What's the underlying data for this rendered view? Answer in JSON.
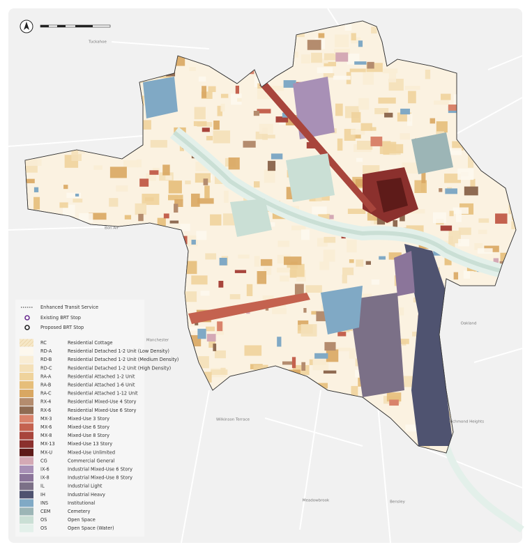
{
  "legend": {
    "transit": [
      {
        "label": "Enhanced Transit Service"
      },
      {
        "label": "Existing BRT Stop"
      },
      {
        "label": "Proposed BRT Stop"
      }
    ],
    "items": [
      {
        "code": "RC",
        "label": "Residential Cottage",
        "color": "#f6e7c6",
        "hatch": true
      },
      {
        "code": "RD-A",
        "label": "Residential Detached 1-2 Unit (Low Density)",
        "color": "#fdf8ee"
      },
      {
        "code": "RD-B",
        "label": "Residential Detached 1-2 Unit (Medium Density)",
        "color": "#f9edd5"
      },
      {
        "code": "RD-C",
        "label": "Residential Detached 1-2 Unit (High Density)",
        "color": "#f4e0b8"
      },
      {
        "code": "RA-A",
        "label": "Residential Attached 1-2 Unit",
        "color": "#efd39c"
      },
      {
        "code": "RA-B",
        "label": "Residential Attached 1-6 Unit",
        "color": "#e6be7a"
      },
      {
        "code": "RA-C",
        "label": "Residential Attached 1-12 Unit",
        "color": "#d9a762"
      },
      {
        "code": "RX-4",
        "label": "Residential Mixed-Use 4 Story",
        "color": "#b48c6e"
      },
      {
        "code": "RX-6",
        "label": "Residential Mixed-Use 6 Story",
        "color": "#8f6b52"
      },
      {
        "code": "MX-3",
        "label": "Mixed-Use 3 Story",
        "color": "#d9836b"
      },
      {
        "code": "MX-6",
        "label": "Mixed-Use 6 Story",
        "color": "#c4624f"
      },
      {
        "code": "MX-8",
        "label": "Mixed-Use 8 Story",
        "color": "#a8453c"
      },
      {
        "code": "MX-13",
        "label": "Mixed-Use 13 Story",
        "color": "#8b302d"
      },
      {
        "code": "MX-U",
        "label": "Mixed-Use Unlimited",
        "color": "#5e1b19"
      },
      {
        "code": "CG",
        "label": "Commercial General",
        "color": "#d4a9b5"
      },
      {
        "code": "IX-6",
        "label": "Industrial Mixed-Use 6 Story",
        "color": "#a890b6"
      },
      {
        "code": "IX-8",
        "label": "Industrial Mixed-Use 8 Story",
        "color": "#8b759a"
      },
      {
        "code": "IL",
        "label": "Industrial Light",
        "color": "#7b7087"
      },
      {
        "code": "IH",
        "label": "Industrial Heavy",
        "color": "#4f5370"
      },
      {
        "code": "INS",
        "label": "Institutional",
        "color": "#80a9c5"
      },
      {
        "code": "CEM",
        "label": "Cemetery",
        "color": "#9cb5b6"
      },
      {
        "code": "OS",
        "label": "Open Space",
        "color": "#cadfd5"
      },
      {
        "code": "OS",
        "label": "Open Space (Water)",
        "color": "#e3f0ea"
      }
    ]
  },
  "places": [
    {
      "name": "Tuckahoe"
    },
    {
      "name": "Bon Air"
    },
    {
      "name": "Manchester"
    },
    {
      "name": "Oakland"
    },
    {
      "name": "Meadowbrook"
    },
    {
      "name": "Bensley"
    },
    {
      "name": "Wilkinson Terrace"
    },
    {
      "name": "Richmond Heights"
    }
  ]
}
